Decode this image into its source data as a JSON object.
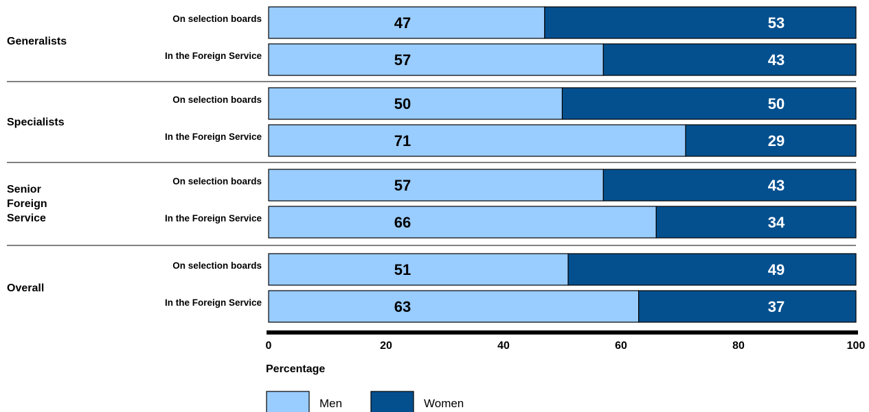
{
  "chart_data": {
    "type": "bar",
    "orientation": "horizontal",
    "stacked": true,
    "groups": [
      {
        "name": "Generalists",
        "rows": [
          {
            "label": "On selection boards",
            "values": [
              47,
              53
            ]
          },
          {
            "label": "In the Foreign Service",
            "values": [
              57,
              43
            ]
          }
        ]
      },
      {
        "name": "Specialists",
        "rows": [
          {
            "label": "On selection boards",
            "values": [
              50,
              50
            ]
          },
          {
            "label": "In the Foreign Service",
            "values": [
              71,
              29
            ]
          }
        ]
      },
      {
        "name": "Senior Foreign Service",
        "name_lines": [
          "Senior",
          "Foreign",
          "Service"
        ],
        "rows": [
          {
            "label": "On selection boards",
            "values": [
              57,
              43
            ]
          },
          {
            "label": "In the Foreign Service",
            "values": [
              66,
              34
            ]
          }
        ]
      },
      {
        "name": "Overall",
        "rows": [
          {
            "label": "On selection boards",
            "values": [
              51,
              49
            ]
          },
          {
            "label": "In the Foreign Service",
            "values": [
              63,
              37
            ]
          }
        ]
      }
    ],
    "series": [
      {
        "name": "Men",
        "color": "#99ccff"
      },
      {
        "name": "Women",
        "color": "#04508f"
      }
    ],
    "xlabel": "Percentage",
    "xlim": [
      0,
      100
    ],
    "xticks": [
      0,
      20,
      40,
      60,
      80,
      100
    ],
    "legend_position": "bottom"
  }
}
